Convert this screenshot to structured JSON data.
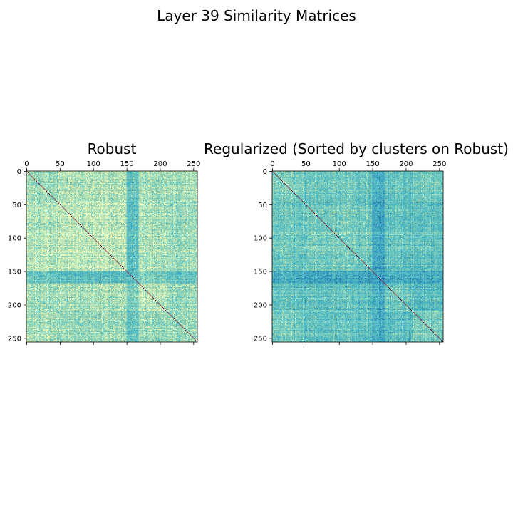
{
  "figure": {
    "suptitle": "Layer 39 Similarity Matrices"
  },
  "chart_data": [
    {
      "type": "heatmap",
      "title": "Robust",
      "size": 256,
      "xticks": [
        0,
        50,
        100,
        150,
        200,
        250
      ],
      "yticks": [
        0,
        50,
        100,
        150,
        200,
        250
      ],
      "xlim": [
        0,
        256
      ],
      "ylim": [
        256,
        0
      ],
      "x_axis_position": "top",
      "colormap": "yellow-green-blue, diagonal dark red",
      "diagonal_value": 1.0,
      "clusters": [
        [
          0,
          47
        ],
        [
          47,
          150
        ],
        [
          150,
          168
        ],
        [
          168,
          210
        ],
        [
          210,
          256
        ]
      ],
      "block_similarity": [
        [
          0.3,
          0.25,
          0.45,
          0.3,
          0.28
        ],
        [
          0.25,
          0.22,
          0.48,
          0.28,
          0.3
        ],
        [
          0.45,
          0.48,
          0.5,
          0.4,
          0.45
        ],
        [
          0.3,
          0.28,
          0.4,
          0.26,
          0.32
        ],
        [
          0.28,
          0.3,
          0.45,
          0.32,
          0.3
        ]
      ]
    },
    {
      "type": "heatmap",
      "title": "Regularized (Sorted by clusters on Robust)",
      "size": 256,
      "xticks": [
        0,
        50,
        100,
        150,
        200,
        250
      ],
      "yticks": [
        0,
        50,
        100,
        150,
        200,
        250
      ],
      "xlim": [
        0,
        256
      ],
      "ylim": [
        256,
        0
      ],
      "x_axis_position": "top",
      "colormap": "yellow-green-blue, diagonal dark red",
      "diagonal_value": 1.0,
      "clusters": [
        [
          0,
          47
        ],
        [
          47,
          150
        ],
        [
          150,
          168
        ],
        [
          168,
          210
        ],
        [
          210,
          256
        ]
      ],
      "block_similarity": [
        [
          0.38,
          0.42,
          0.55,
          0.45,
          0.4
        ],
        [
          0.42,
          0.4,
          0.58,
          0.45,
          0.45
        ],
        [
          0.55,
          0.58,
          0.6,
          0.55,
          0.55
        ],
        [
          0.45,
          0.45,
          0.55,
          0.42,
          0.48
        ],
        [
          0.4,
          0.45,
          0.55,
          0.48,
          0.38
        ]
      ]
    }
  ]
}
